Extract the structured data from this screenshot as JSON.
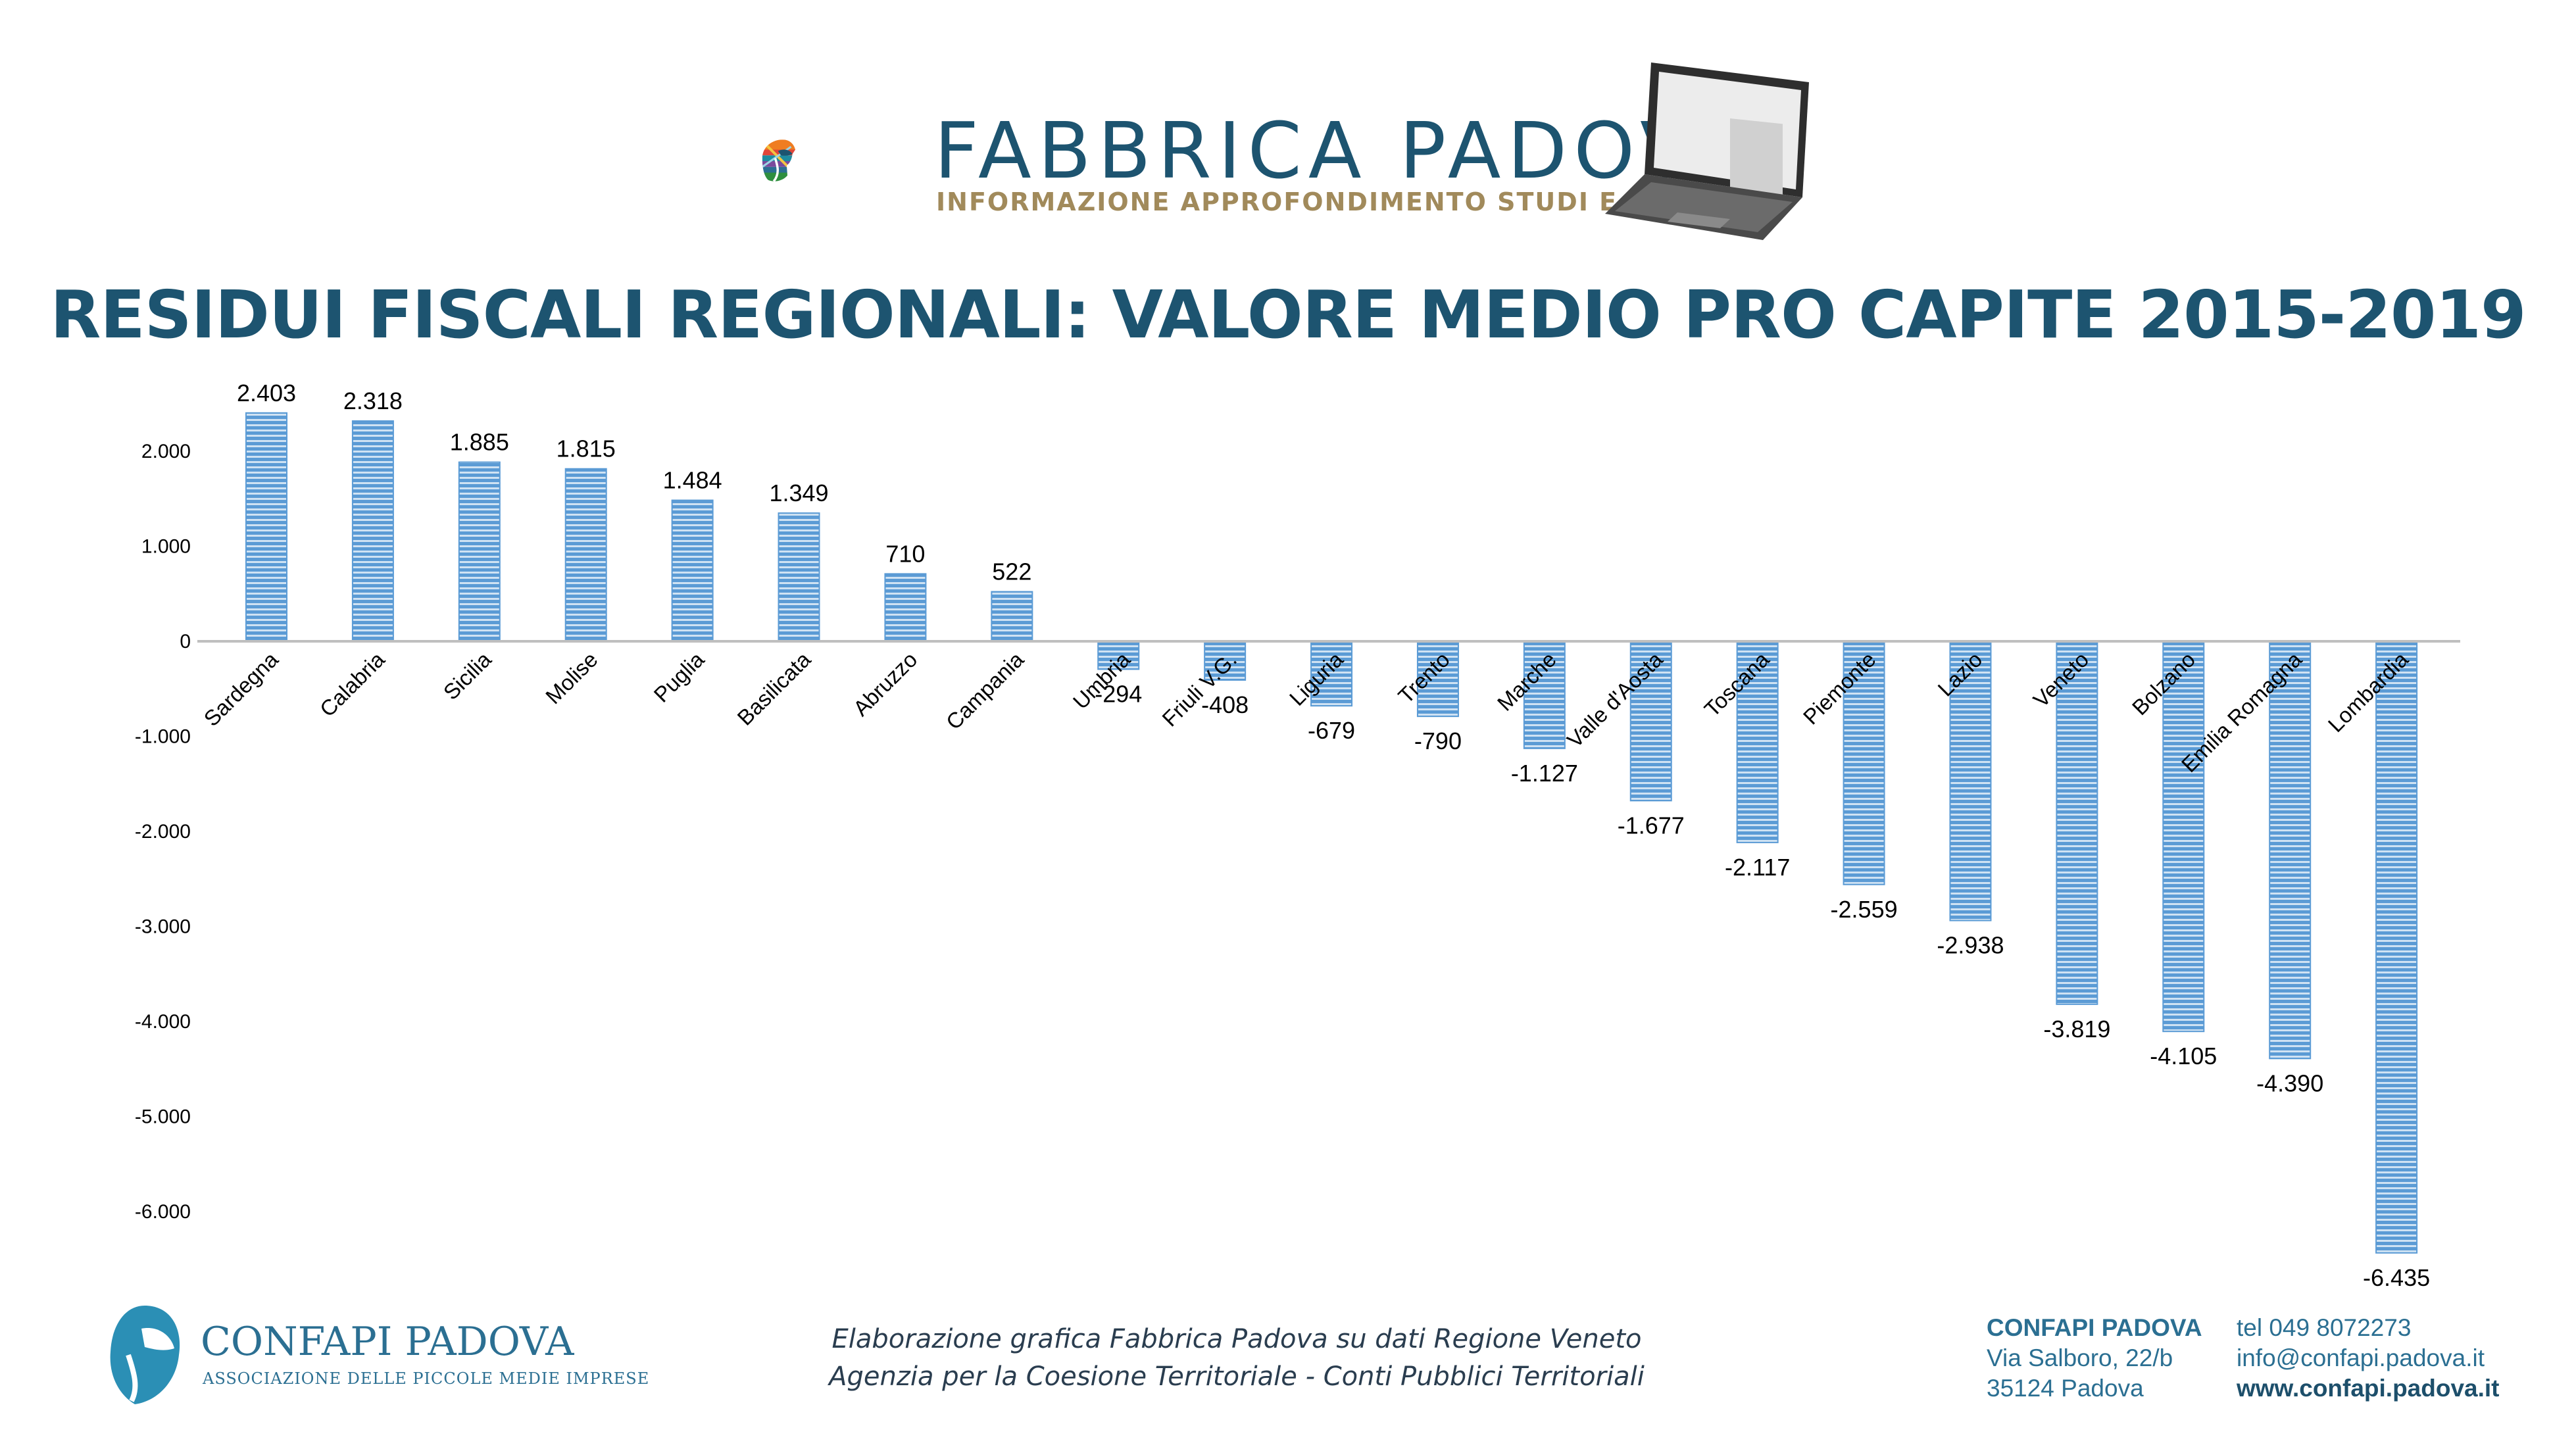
{
  "header": {
    "brand_name": "FABBRICA PADOVA",
    "tagline": "INFORMAZIONE APPROFONDIMENTO STUDI E RICERCHE",
    "title": "RESIDUI FISCALI REGIONALI: VALORE MEDIO PRO CAPITE 2015-2019"
  },
  "colors": {
    "title": "#1d5470",
    "bar": "#5b9bd5",
    "bar_stripe": "#cfe2f3",
    "axis": "#bfbfbf",
    "text": "#000000"
  },
  "chart_data": {
    "type": "bar",
    "categories": [
      "Sardegna",
      "Calabria",
      "Sicilia",
      "Molise",
      "Puglia",
      "Basilicata",
      "Abruzzo",
      "Campania",
      "Umbria",
      "Friuli V.G.",
      "Liguria",
      "Trento",
      "Marche",
      "Valle d'Aosta",
      "Toscana",
      "Piemonte",
      "Lazio",
      "Veneto",
      "Bolzano",
      "Emilia Romagna",
      "Lombardia"
    ],
    "values": [
      2403,
      2318,
      1885,
      1815,
      1484,
      1349,
      710,
      522,
      -294,
      -408,
      -679,
      -790,
      -1127,
      -1677,
      -2117,
      -2559,
      -2938,
      -3819,
      -4105,
      -4390,
      -6435
    ],
    "value_labels": [
      "2.403",
      "2.318",
      "1.885",
      "1.815",
      "1.484",
      "1.349",
      "710",
      "522",
      "-294",
      "-408",
      "-679",
      "-790",
      "-1.127",
      "-1.677",
      "-2.117",
      "-2.559",
      "-2.938",
      "-3.819",
      "-4.105",
      "-4.390",
      "-6.435"
    ],
    "y_ticks": [
      2000,
      1000,
      0,
      -1000,
      -2000,
      -3000,
      -4000,
      -5000,
      -6000
    ],
    "y_tick_labels": [
      "2.000",
      "1.000",
      "0",
      "-1.000",
      "-2.000",
      "-3.000",
      "-4.000",
      "-5.000",
      "-6.000"
    ],
    "ylim": [
      -6700,
      2500
    ],
    "legend": "none",
    "grid": false,
    "category_label_rotation": "-45deg"
  },
  "footer": {
    "organization": "CONFAPI PADOVA",
    "organization_subtitle": "ASSOCIAZIONE DELLE PICCOLE MEDIE IMPRESE",
    "source_line_1": "Elaborazione grafica Fabbrica Padova su dati Regione Veneto",
    "source_line_2": "Agenzia per la Coesione Territoriale - Conti Pubblici Territoriali",
    "contact": {
      "org": "CONFAPI PADOVA",
      "street": "Via Salboro, 22/b",
      "city": "35124 Padova",
      "phone": "tel 049 8072273",
      "email": "info@confapi.padova.it",
      "website": "www.confapi.padova.it"
    }
  }
}
